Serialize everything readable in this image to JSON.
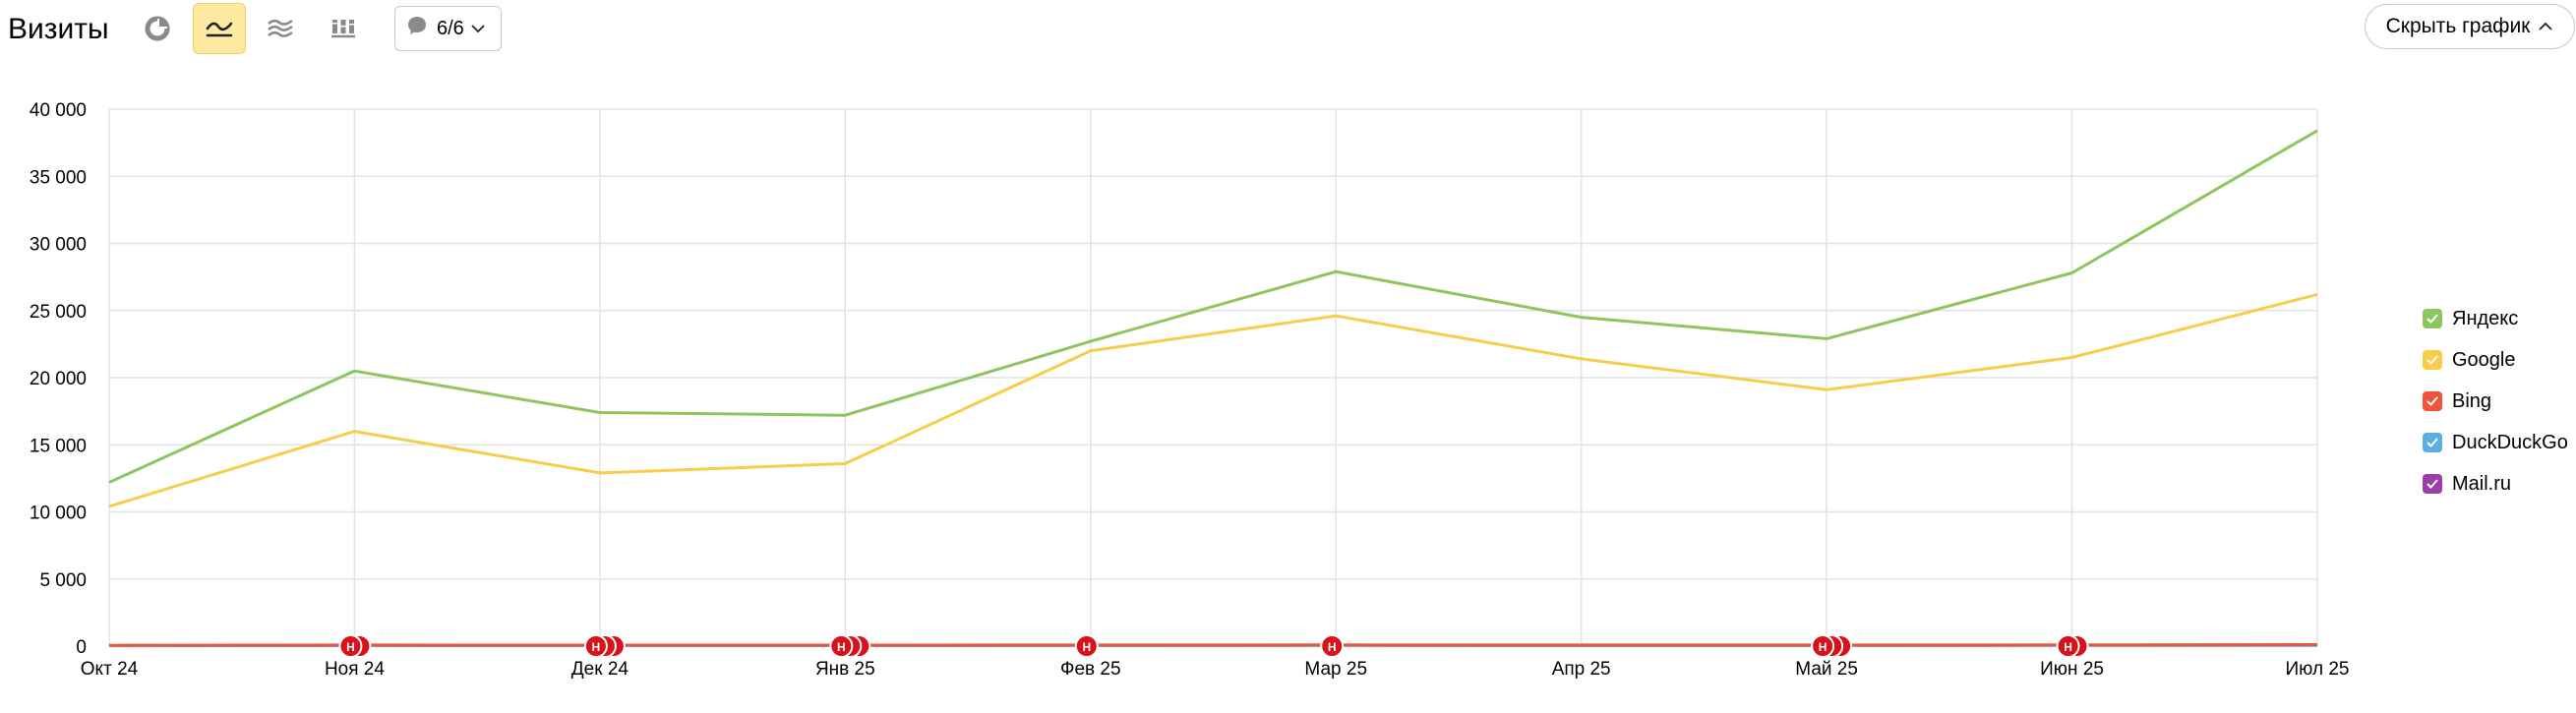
{
  "toolbar": {
    "title": "Визиты",
    "annotations_label": "6/6",
    "hide_chart_label": "Скрыть график"
  },
  "colors": {
    "Яндекс": "#8dc65d",
    "Google": "#f7cd4a",
    "Bing": "#f0553a",
    "DuckDuckGo": "#5aaee0",
    "Mail.ru": "#9b3fa8",
    "active_button_bg": "#fde9a0",
    "annotation_marker": "#d8111b"
  },
  "icons": {
    "pie": "pie-chart-icon",
    "line": "line-chart-icon",
    "area": "stacked-area-icon",
    "bar": "stacked-bar-icon",
    "annotations": "speech-bubble-icon",
    "chevron": "chevron-down-icon",
    "hide": "chevron-up-icon"
  },
  "legend": {
    "items": [
      {
        "label": "Яндекс",
        "color": "#8dc65d",
        "checked": true
      },
      {
        "label": "Google",
        "color": "#f7cd4a",
        "checked": true
      },
      {
        "label": "Bing",
        "color": "#f0553a",
        "checked": true
      },
      {
        "label": "DuckDuckGo",
        "color": "#5aaee0",
        "checked": true
      },
      {
        "label": "Mail.ru",
        "color": "#9b3fa8",
        "checked": true
      }
    ]
  },
  "chart_data": {
    "type": "line",
    "categories": [
      "Окт 24",
      "Ноя 24",
      "Дек 24",
      "Янв 25",
      "Фев 25",
      "Мар 25",
      "Апр 25",
      "Май 25",
      "Июн 25",
      "Июл 25"
    ],
    "y_ticks": [
      "0",
      "5 000",
      "10 000",
      "15 000",
      "20 000",
      "25 000",
      "30 000",
      "35 000",
      "40 000"
    ],
    "ylim": [
      0,
      40000
    ],
    "grid": true,
    "legend_position": "right",
    "series": [
      {
        "name": "Яндекс",
        "color": "#8dc65d",
        "values": [
          12200,
          20500,
          17400,
          17200,
          22700,
          27900,
          24500,
          22900,
          27800,
          38400
        ]
      },
      {
        "name": "Google",
        "color": "#f7cd4a",
        "values": [
          10400,
          16000,
          12900,
          13600,
          22000,
          24600,
          21400,
          19100,
          21500,
          26200
        ]
      },
      {
        "name": "Bing",
        "color": "#f0553a",
        "values": [
          60,
          80,
          70,
          70,
          80,
          90,
          80,
          80,
          90,
          110
        ]
      },
      {
        "name": "DuckDuckGo",
        "color": "#5aaee0",
        "values": [
          30,
          40,
          35,
          35,
          40,
          45,
          40,
          40,
          45,
          55
        ]
      },
      {
        "name": "Mail.ru",
        "color": "#9b3fa8",
        "values": [
          40,
          60,
          50,
          50,
          60,
          70,
          60,
          60,
          70,
          90
        ]
      }
    ],
    "annotations": [
      {
        "category": "Ноя 24",
        "label": "Н",
        "count": 2
      },
      {
        "category": "Дек 24",
        "label": "Н",
        "count": 3
      },
      {
        "category": "Янв 25",
        "label": "Н",
        "count": 3
      },
      {
        "category": "Фев 25",
        "label": "Н",
        "count": 1
      },
      {
        "category": "Мар 25",
        "label": "Н",
        "count": 1
      },
      {
        "category": "Май 25",
        "label": "Н",
        "count": 3
      },
      {
        "category": "Июн 25",
        "label": "Н",
        "count": 2
      }
    ]
  }
}
